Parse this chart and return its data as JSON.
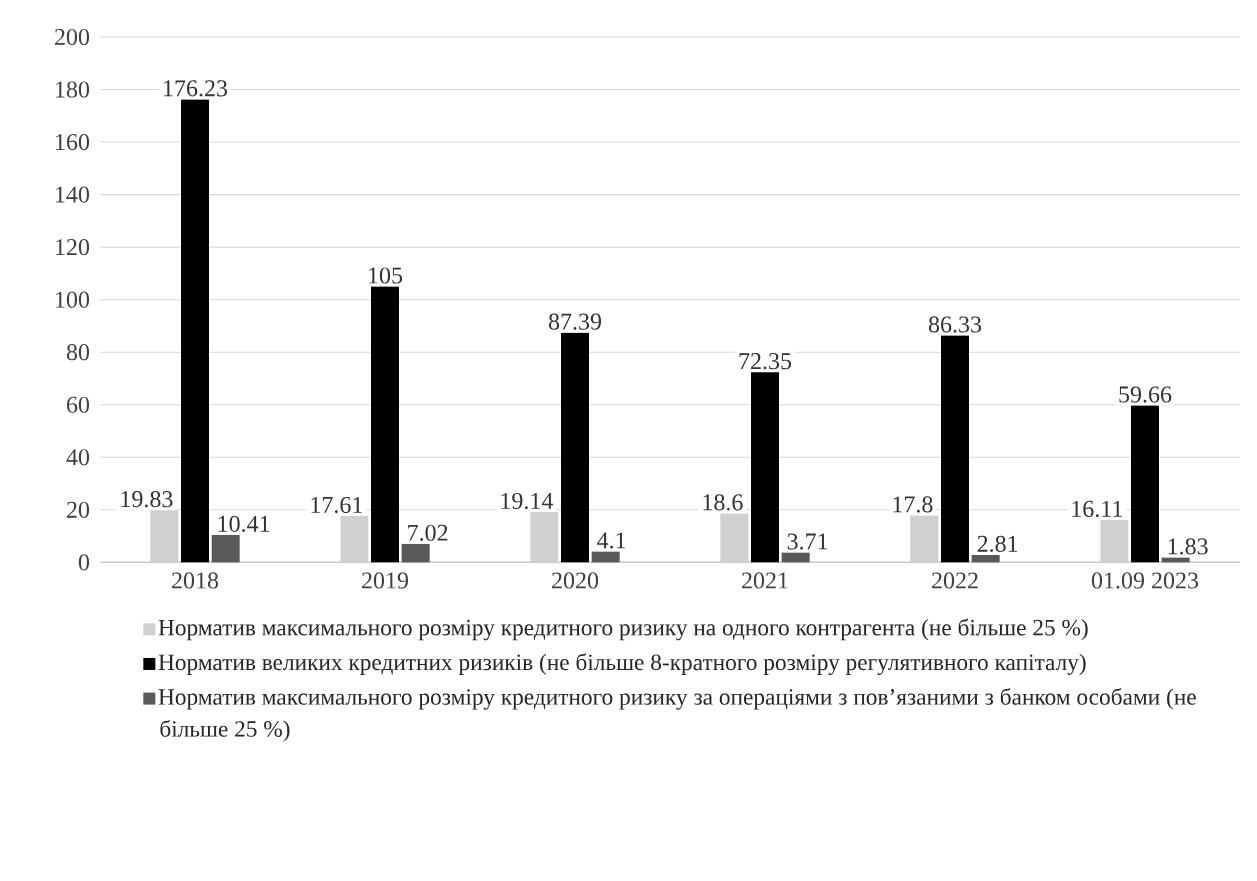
{
  "chart_data": {
    "type": "bar",
    "categories": [
      "2018",
      "2019",
      "2020",
      "2021",
      "2022",
      "01.09 2023"
    ],
    "series": [
      {
        "name": "Норматив максимального розміру кредитного ризику на одного контрагента (не більше 25 %)",
        "color": "#d0d0d0",
        "values": [
          19.83,
          17.61,
          19.14,
          18.6,
          17.8,
          16.11
        ]
      },
      {
        "name": "Норматив великих кредитних ризиків (не більше 8-кратного розміру регулятивного капіталу)",
        "color": "#000000",
        "values": [
          176.23,
          105,
          87.39,
          72.35,
          86.33,
          59.66
        ]
      },
      {
        "name": "Норматив максимального розміру кредитного ризику за операціями з пов’язаними з банком особами (не більше 25 %)",
        "color": "#595959",
        "values": [
          10.41,
          7.02,
          4.1,
          3.71,
          2.81,
          1.83
        ]
      }
    ],
    "ylim": [
      0,
      200
    ],
    "yticks": [
      0,
      20,
      40,
      60,
      80,
      100,
      120,
      140,
      160,
      180,
      200
    ],
    "grid": "y",
    "legend": "bottom",
    "data_labels": true
  }
}
